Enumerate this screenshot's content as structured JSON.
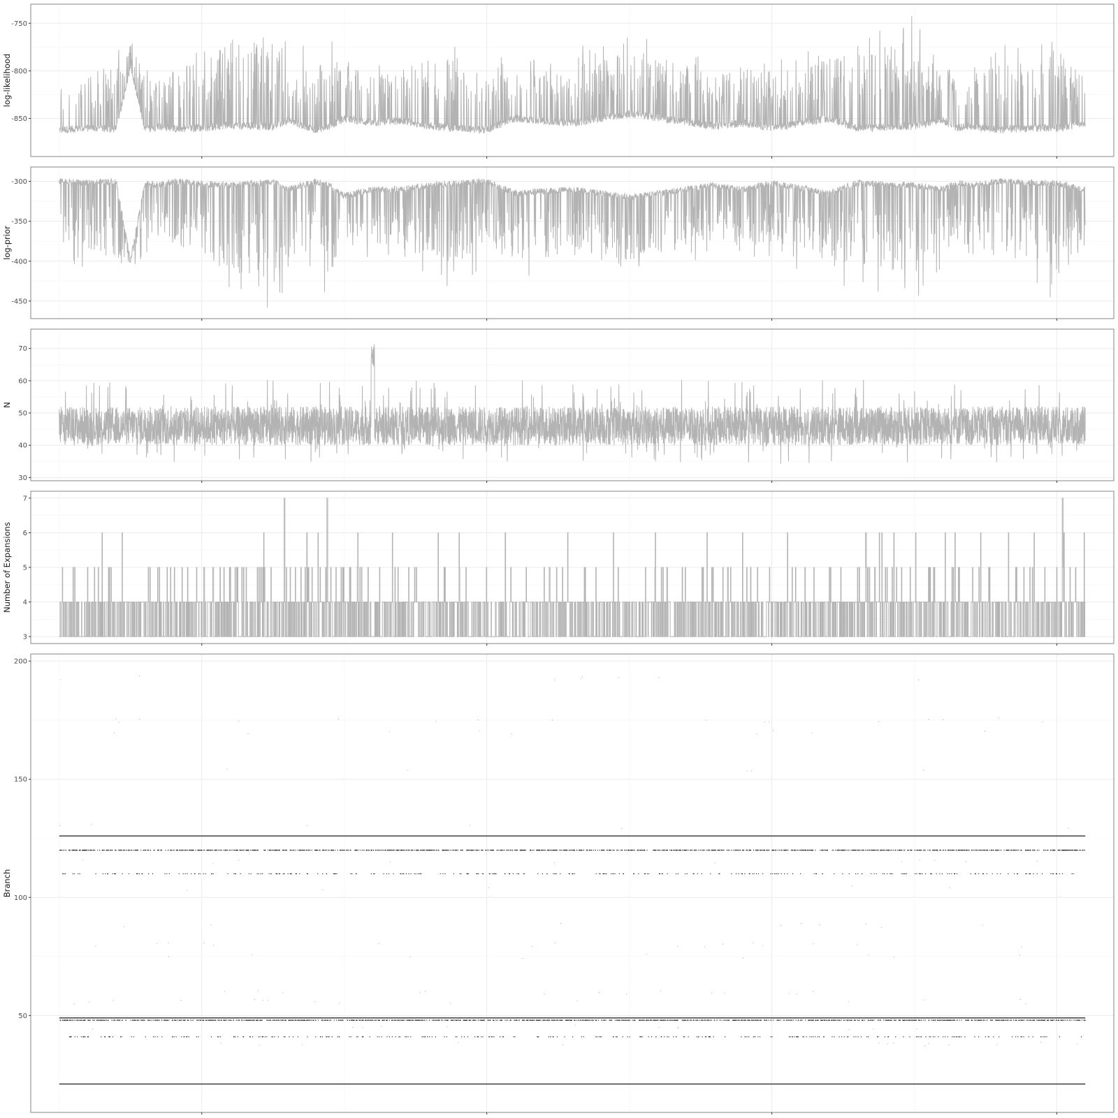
{
  "chart_data": [
    {
      "type": "line",
      "ylabel": "log-likelihood",
      "xlim": [
        -100,
        3700
      ],
      "ylim": [
        -890,
        -730
      ],
      "yticks": [
        -750,
        -800,
        -850
      ],
      "tick_labels": [
        "-750",
        "-800",
        "-850"
      ],
      "xticks": [
        500,
        1500,
        2500,
        3500
      ],
      "series": [
        {
          "x": [
            0,
            100,
            200,
            250,
            300,
            350,
            400,
            500,
            600,
            750,
            800,
            900,
            950,
            1000,
            1100,
            1200,
            1300,
            1400,
            1500,
            1600,
            1800,
            2000,
            2300,
            2400,
            2500,
            2700,
            2800,
            3000,
            3100,
            3150,
            3200,
            3300,
            3400,
            3500,
            3600
          ],
          "base": [
            -862,
            -860,
            -861,
            -795,
            -862,
            -858,
            -861,
            -860,
            -857,
            -859,
            -852,
            -862,
            -858,
            -850,
            -855,
            -852,
            -858,
            -860,
            -862,
            -850,
            -855,
            -845,
            -858,
            -855,
            -860,
            -850,
            -860,
            -858,
            -852,
            -860,
            -858,
            -862,
            -860,
            -860,
            -855
          ],
          "peaks": [
            -800,
            -790,
            -775,
            -765,
            -790,
            -785,
            -780,
            -770,
            -745,
            -740,
            -765,
            -775,
            -755,
            -780,
            -790,
            -785,
            -770,
            -765,
            -790,
            -765,
            -780,
            -760,
            -790,
            -780,
            -785,
            -770,
            -760,
            -745,
            -775,
            -790,
            -780,
            -775,
            -770,
            -757,
            -790
          ]
        }
      ]
    },
    {
      "type": "line",
      "ylabel": "log-prior",
      "xlim": [
        -100,
        3700
      ],
      "ylim": [
        -472,
        -282
      ],
      "yticks": [
        -300,
        -350,
        -400,
        -450
      ],
      "tick_labels": [
        "-300",
        "-350",
        "-400",
        "-450"
      ],
      "xticks": [
        500,
        1500,
        2500,
        3500
      ],
      "series": [
        {
          "x": [
            0,
            100,
            200,
            250,
            300,
            350,
            400,
            500,
            600,
            750,
            800,
            900,
            950,
            1000,
            1100,
            1200,
            1300,
            1400,
            1500,
            1600,
            1800,
            2000,
            2300,
            2400,
            2500,
            2700,
            2800,
            3000,
            3100,
            3150,
            3200,
            3300,
            3400,
            3500,
            3600
          ],
          "base": [
            -300,
            -302,
            -300,
            -400,
            -302,
            -305,
            -300,
            -303,
            -305,
            -300,
            -310,
            -300,
            -305,
            -318,
            -310,
            -310,
            -305,
            -302,
            -300,
            -315,
            -310,
            -320,
            -305,
            -310,
            -302,
            -315,
            -302,
            -305,
            -310,
            -302,
            -305,
            -300,
            -302,
            -302,
            -310
          ],
          "troughs": [
            -395,
            -405,
            -425,
            -410,
            -390,
            -400,
            -405,
            -420,
            -440,
            -460,
            -420,
            -405,
            -450,
            -400,
            -395,
            -405,
            -420,
            -430,
            -395,
            -430,
            -405,
            -420,
            -390,
            -400,
            -395,
            -420,
            -430,
            -445,
            -410,
            -400,
            -405,
            -420,
            -425,
            -450,
            -400
          ]
        }
      ]
    },
    {
      "type": "line",
      "ylabel": "N",
      "xlim": [
        -100,
        3700
      ],
      "ylim": [
        29,
        76
      ],
      "yticks": [
        30,
        40,
        50,
        60,
        70
      ],
      "tick_labels": [
        "30",
        "40",
        "50",
        "60",
        "70"
      ],
      "xticks": [
        500,
        1500,
        2500,
        3500
      ],
      "series": [
        {
          "mean": 46,
          "range": [
            32,
            74
          ],
          "spike_x": 1100,
          "spike_value": 72
        }
      ]
    },
    {
      "type": "line",
      "ylabel": "Number of Expansions",
      "xlim": [
        -100,
        3700
      ],
      "ylim": [
        2.8,
        7.2
      ],
      "yticks": [
        3,
        4,
        5,
        6,
        7
      ],
      "tick_labels": [
        "3",
        "4",
        "5",
        "6",
        "7"
      ],
      "xticks": [
        500,
        1500,
        2500,
        3500
      ],
      "series": [
        {
          "levels": [
            3,
            4,
            5,
            6,
            7
          ],
          "peaks_at_7_x": [
            790,
            940,
            3520
          ]
        }
      ]
    },
    {
      "type": "scatter",
      "ylabel": "Branch",
      "xlim": [
        -100,
        3700
      ],
      "ylim": [
        9,
        203
      ],
      "yticks": [
        50,
        100,
        150,
        200
      ],
      "tick_labels": [
        "50",
        "100",
        "150",
        "200"
      ],
      "xticks": [
        500,
        1500,
        2500,
        3500
      ],
      "series": [
        {
          "constant_branches": [
            21,
            126,
            49
          ],
          "frequent_branches": [
            120,
            48,
            110,
            41
          ],
          "sparse_branches": [
            193,
            175,
            170,
            154,
            130,
            115,
            104,
            88,
            80,
            75,
            60,
            56,
            45,
            38
          ]
        }
      ]
    }
  ]
}
